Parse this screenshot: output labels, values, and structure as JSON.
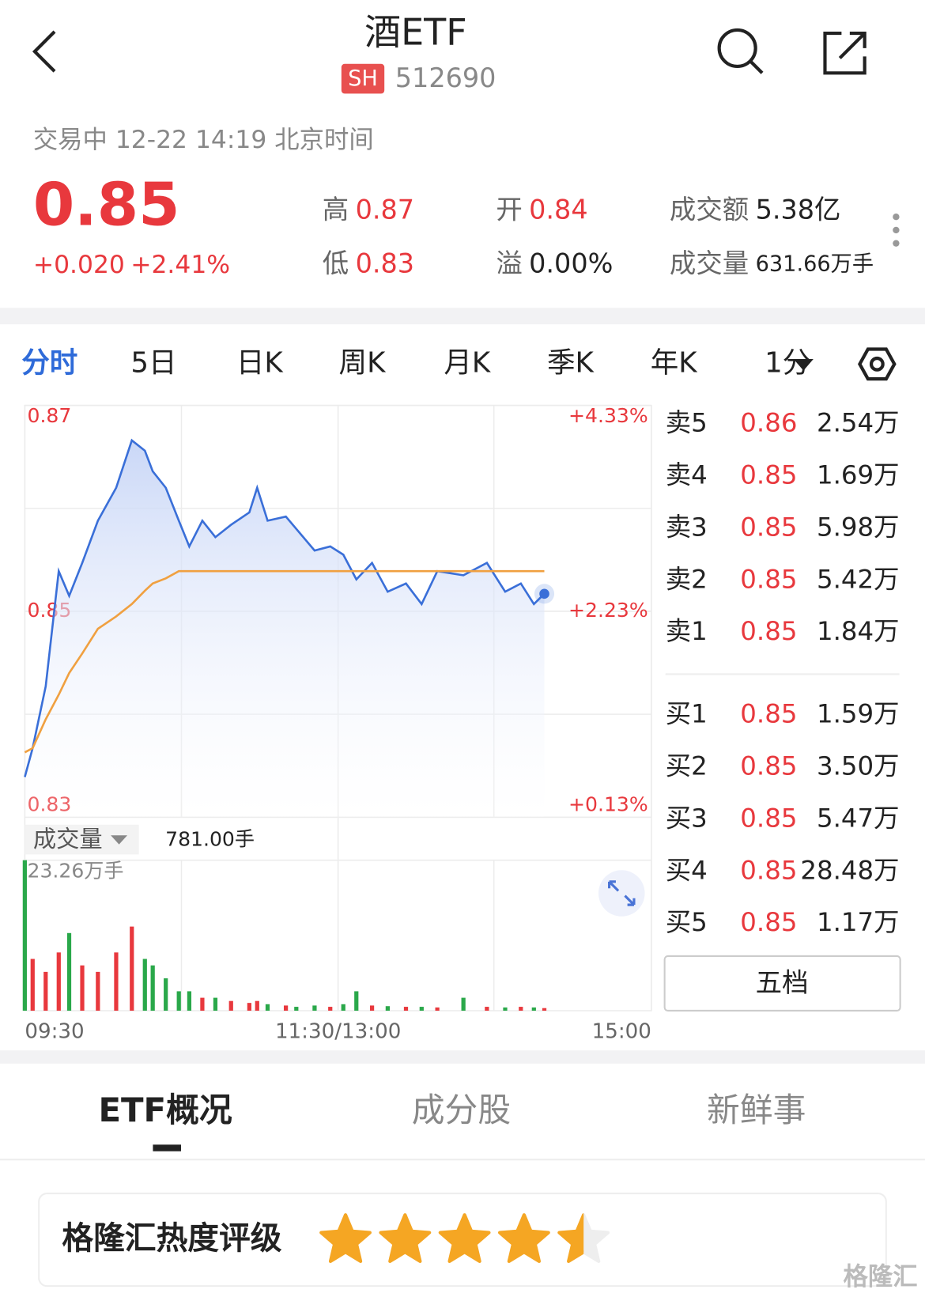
{
  "header": {
    "title": "酒ETF",
    "market": "SH",
    "code": "512690"
  },
  "quote": {
    "status": "交易中 12-22 14:19 北京时间",
    "price": "0.85",
    "change": "+0.020",
    "change_pct": "+2.41%",
    "stats": [
      {
        "label": "高",
        "value": "0.87"
      },
      {
        "label": "开",
        "value": "0.84"
      },
      {
        "label": "成交额",
        "value": "5.38亿"
      },
      {
        "label": "低",
        "value": "0.83"
      },
      {
        "label": "溢",
        "value": "0.00%"
      },
      {
        "label": "成交量",
        "value": "631.66万手"
      }
    ]
  },
  "period_tabs": [
    "分时",
    "5日",
    "日K",
    "周K",
    "月K",
    "季K",
    "年K",
    "1分"
  ],
  "chart_data": {
    "type": "line",
    "x": [
      0,
      3,
      8,
      13,
      17,
      22,
      28,
      35,
      41,
      46,
      49,
      54,
      59,
      63,
      68,
      73,
      79,
      86,
      89,
      93,
      100,
      104,
      111,
      117,
      122,
      127,
      133,
      139,
      146,
      152,
      158,
      168,
      177,
      184,
      190,
      195,
      199
    ],
    "xlim": [
      0,
      240
    ],
    "xticks": [
      {
        "value": 0,
        "label": "09:30"
      },
      {
        "value": 120,
        "label": "11:30/13:00"
      },
      {
        "value": 240,
        "label": "15:00"
      }
    ],
    "ylim": [
      0.83,
      0.87
    ],
    "yticks": [
      0.87,
      0.85,
      0.83
    ],
    "y2lim": [
      0.13,
      4.33
    ],
    "y2ticks": [
      {
        "value": 4.33,
        "label": "+4.33%"
      },
      {
        "value": 2.23,
        "label": "+2.23%"
      },
      {
        "value": 0.13,
        "label": "+0.13%"
      }
    ],
    "series": [
      {
        "color": "#3a6fd8",
        "values": [
          0.8339,
          0.8367,
          0.8427,
          0.8539,
          0.8515,
          0.8547,
          0.8588,
          0.862,
          0.8666,
          0.8656,
          0.8636,
          0.862,
          0.8588,
          0.8563,
          0.8588,
          0.8572,
          0.8584,
          0.8596,
          0.862,
          0.8588,
          0.8592,
          0.858,
          0.8559,
          0.8563,
          0.8555,
          0.8531,
          0.8547,
          0.8519,
          0.8527,
          0.8507,
          0.8539,
          0.8535,
          0.8547,
          0.8519,
          0.8527,
          0.8507,
          0.8517
        ]
      },
      {
        "color": "#f0a040",
        "values": [
          0.8363,
          0.8367,
          0.8395,
          0.8419,
          0.844,
          0.8459,
          0.8483,
          0.8495,
          0.8507,
          0.852,
          0.8527,
          0.8532,
          0.8539,
          0.8539,
          0.8539,
          0.8539,
          0.8539,
          0.8539,
          0.8539,
          0.8539,
          0.8539,
          0.8539,
          0.8539,
          0.8539,
          0.8539,
          0.8539,
          0.8539,
          0.8539,
          0.8539,
          0.8539,
          0.8539,
          0.8539,
          0.8539,
          0.8539,
          0.8539,
          0.8539,
          0.8539
        ]
      }
    ],
    "volume": {
      "label": "成交量",
      "current": "781.00手",
      "up_color": "#e8383d",
      "down_color": "#2aa84a",
      "ylim": [
        0,
        23.26
      ],
      "yticks": [
        {
          "value": 23.26,
          "label": "23.26万手"
        }
      ],
      "values": [
        23.26,
        8,
        6,
        9,
        12,
        7,
        6,
        9,
        13,
        8,
        7,
        5,
        3,
        3,
        2,
        2,
        1.5,
        1.2,
        1.5,
        1,
        0.8,
        0.6,
        0.8,
        0.6,
        1,
        3,
        0.8,
        0.7,
        0.6,
        0.6,
        0.5,
        2,
        0.6,
        0.5,
        0.6,
        0.5,
        0.4
      ]
    }
  },
  "order_book": {
    "sell": [
      {
        "label": "卖5",
        "price": "0.86",
        "volume": "2.54万"
      },
      {
        "label": "卖4",
        "price": "0.85",
        "volume": "1.69万"
      },
      {
        "label": "卖3",
        "price": "0.85",
        "volume": "5.98万"
      },
      {
        "label": "卖2",
        "price": "0.85",
        "volume": "5.42万"
      },
      {
        "label": "卖1",
        "price": "0.85",
        "volume": "1.84万"
      }
    ],
    "buy": [
      {
        "label": "买1",
        "price": "0.85",
        "volume": "1.59万"
      },
      {
        "label": "买2",
        "price": "0.85",
        "volume": "3.50万"
      },
      {
        "label": "买3",
        "price": "0.85",
        "volume": "5.47万"
      },
      {
        "label": "买4",
        "price": "0.85",
        "volume": "28.48万"
      },
      {
        "label": "买5",
        "price": "0.85",
        "volume": "1.17万"
      }
    ],
    "button": "五档"
  },
  "bottom_tabs": [
    "ETF概况",
    "成分股",
    "新鲜事"
  ],
  "rating": {
    "label": "格隆汇热度评级",
    "stars": 4.5
  },
  "watermark": "格隆汇"
}
